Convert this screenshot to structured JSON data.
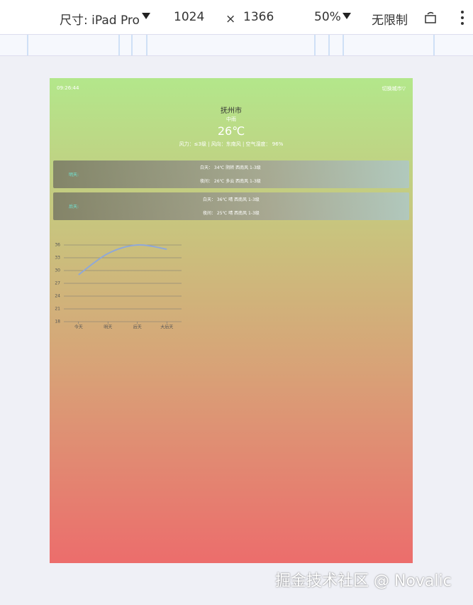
{
  "toolbar": {
    "device": "尺寸: iPad Pro",
    "width": "1024",
    "times": "×",
    "height": "1366",
    "zoom": "50%",
    "throttle": "无限制"
  },
  "app": {
    "time": "09:26:44",
    "switch_city": "切换城市▽",
    "city": "抚州市",
    "weather": "中雨",
    "temperature": "26℃",
    "details": "风力：≤3级 | 风向：东南风 | 空气湿度： 96%",
    "forecast": [
      {
        "day": "明天:",
        "daytime": "白天： 34℃ 阴转 西南风 1-3级",
        "night": "夜间： 26℃ 多云 西南风 1-3级"
      },
      {
        "day": "后天:",
        "daytime": "白天： 36℃ 晴 西南风 1-3级",
        "night": "夜间： 25℃ 晴 西南风 1-3级"
      }
    ]
  },
  "chart_data": {
    "type": "line",
    "categories": [
      "今天",
      "明天",
      "后天",
      "大后天"
    ],
    "values": [
      29,
      34,
      36,
      35
    ],
    "color": "#8fa8d8",
    "ylim": [
      18,
      36
    ],
    "yticks": [
      18,
      21,
      24,
      27,
      30,
      33,
      36
    ],
    "grid": true
  },
  "watermark": "掘金技术社区 @ Novalic"
}
